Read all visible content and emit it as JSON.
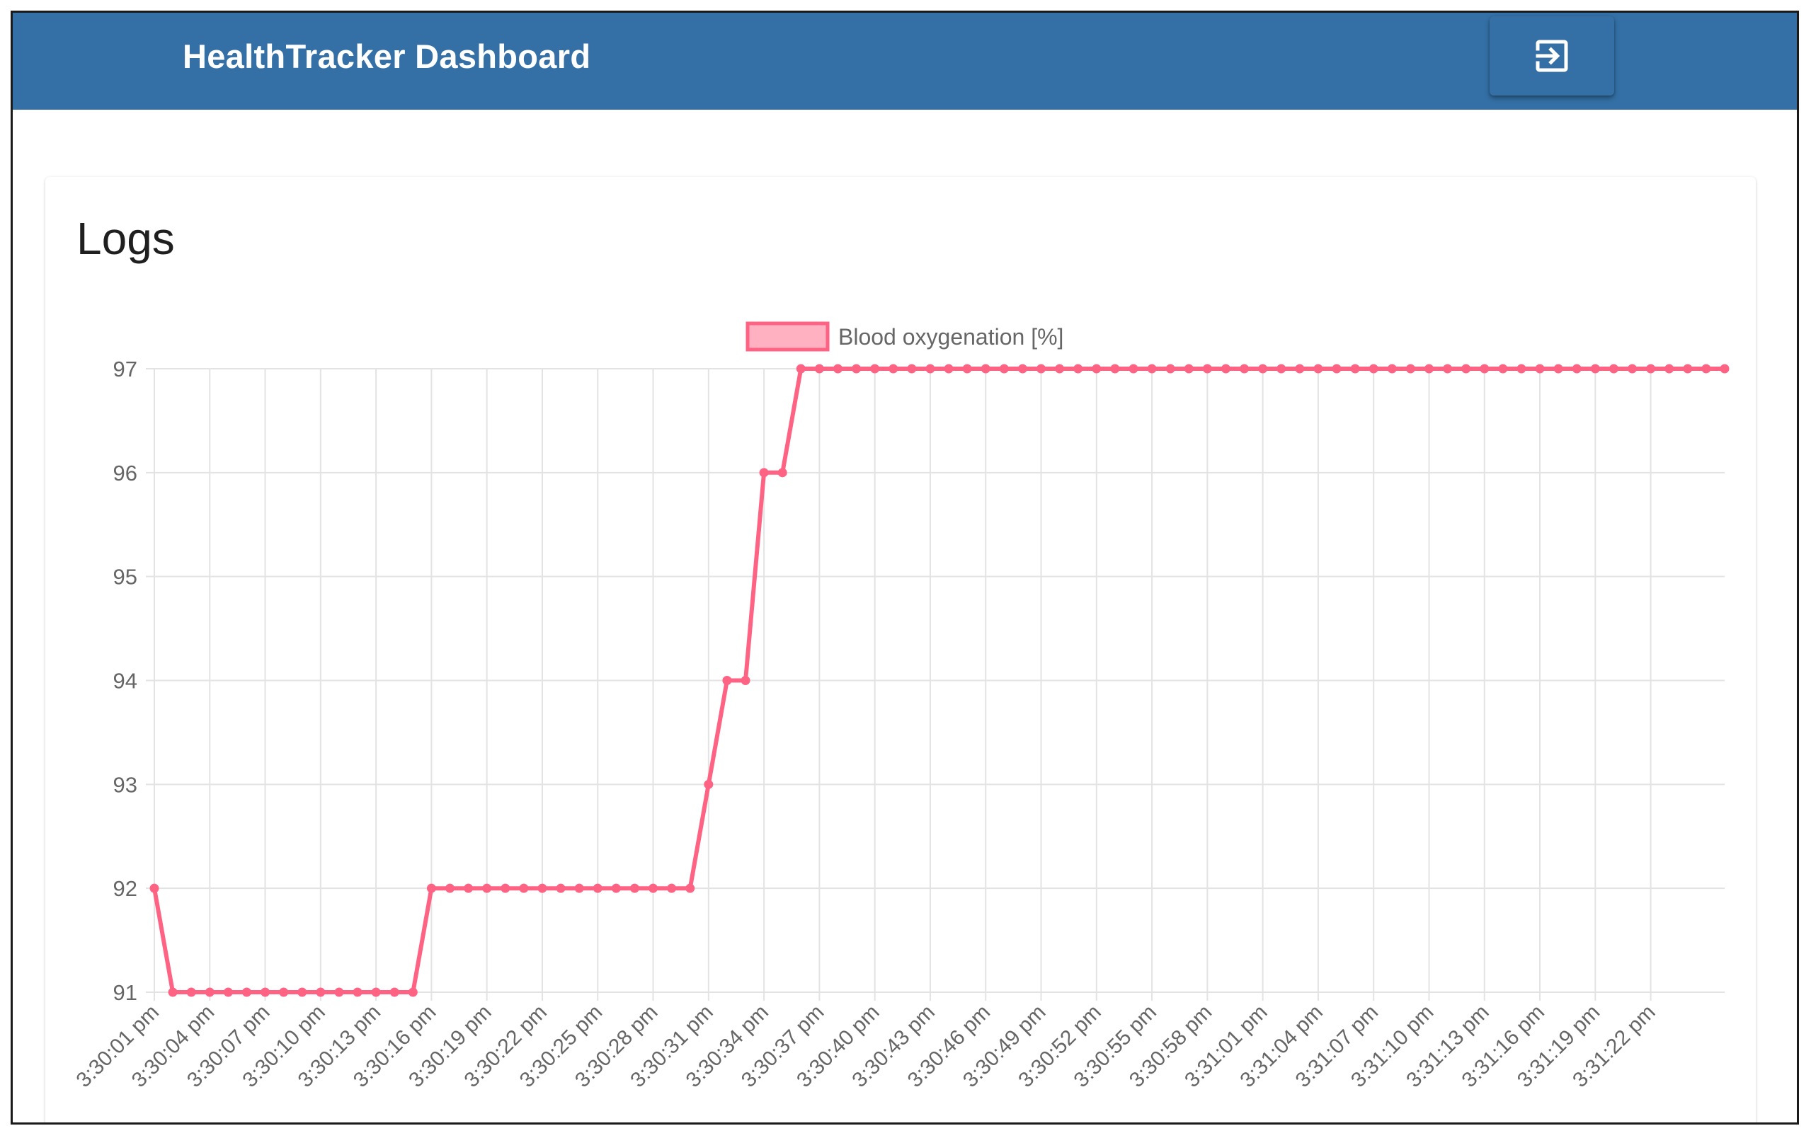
{
  "header": {
    "title": "HealthTracker Dashboard",
    "logout_icon": "logout-icon"
  },
  "card": {
    "title": "Logs"
  },
  "colors": {
    "appbar": "#3470a6",
    "series_line": "#ff6384",
    "series_fill": "#ffb1c1",
    "grid": "#e3e3e3",
    "tick_text": "#666666"
  },
  "chart_data": {
    "type": "line",
    "title": "",
    "xlabel": "",
    "ylabel": "",
    "ylim": [
      91,
      97
    ],
    "yticks": [
      91,
      92,
      93,
      94,
      95,
      96,
      97
    ],
    "grid": true,
    "legend_position": "top",
    "x_tick_labels": [
      "3:30:01 pm",
      "3:30:04 pm",
      "3:30:07 pm",
      "3:30:10 pm",
      "3:30:13 pm",
      "3:30:16 pm",
      "3:30:19 pm",
      "3:30:22 pm",
      "3:30:25 pm",
      "3:30:28 pm",
      "3:30:31 pm",
      "3:30:34 pm",
      "3:30:37 pm",
      "3:30:40 pm",
      "3:30:43 pm",
      "3:30:46 pm",
      "3:30:49 pm",
      "3:30:52 pm",
      "3:30:55 pm",
      "3:30:58 pm",
      "3:31:01 pm",
      "3:31:04 pm",
      "3:31:07 pm",
      "3:31:10 pm",
      "3:31:13 pm",
      "3:31:16 pm",
      "3:31:19 pm",
      "3:31:22 pm"
    ],
    "series": [
      {
        "name": "Blood oxygenation [%]",
        "values": [
          92,
          91,
          91,
          91,
          91,
          91,
          91,
          91,
          91,
          91,
          91,
          91,
          91,
          91,
          91,
          92,
          92,
          92,
          92,
          92,
          92,
          92,
          92,
          92,
          92,
          92,
          92,
          92,
          92,
          92,
          93,
          94,
          94,
          96,
          96,
          97,
          97,
          97,
          97,
          97,
          97,
          97,
          97,
          97,
          97,
          97,
          97,
          97,
          97,
          97,
          97,
          97,
          97,
          97,
          97,
          97,
          97,
          97,
          97,
          97,
          97,
          97,
          97,
          97,
          97,
          97,
          97,
          97,
          97,
          97,
          97,
          97,
          97,
          97,
          97,
          97,
          97,
          97,
          97,
          97,
          97,
          97,
          97,
          97,
          97,
          97
        ]
      }
    ]
  }
}
